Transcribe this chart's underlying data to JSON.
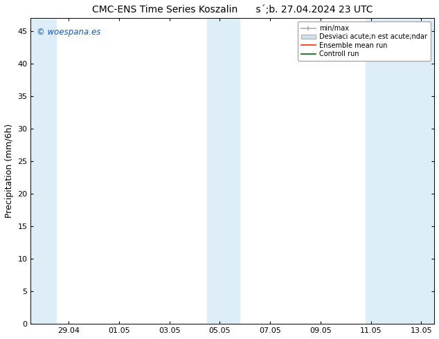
{
  "title": "CMC-ENS Time Series Koszalin      s´;b. 27.04.2024 23 UTC",
  "ylabel": "Precipitation (mm/6h)",
  "ylim": [
    0,
    47
  ],
  "yticks": [
    0,
    5,
    10,
    15,
    20,
    25,
    30,
    35,
    40,
    45
  ],
  "background_color": "#ffffff",
  "plot_bg_color": "#ffffff",
  "shaded_band_color": "#ddeef8",
  "watermark_text": "© woespana.es",
  "watermark_color": "#1155cc",
  "legend_entries": [
    "min/max",
    "Desviaci acute;n est acute;ndar",
    "Ensemble mean run",
    "Controll run"
  ],
  "legend_minmax_color": "#aaaaaa",
  "legend_desviac_color": "#cce0f0",
  "legend_ensemble_color": "#ff2200",
  "legend_control_color": "#006600",
  "x_tick_labels": [
    "29.04",
    "01.05",
    "03.05",
    "05.05",
    "07.05",
    "09.05",
    "11.05",
    "13.05"
  ],
  "x_tick_positions": [
    2,
    4,
    6,
    8,
    10,
    12,
    14,
    16
  ],
  "x_lim": [
    0.5,
    16.5
  ],
  "band1_x1": 0.5,
  "band1_x2": 1.5,
  "band2_x1": 7.5,
  "band2_x2": 8.8,
  "band3_x1": 13.8,
  "band3_x2": 16.5,
  "title_fontsize": 10,
  "ylabel_fontsize": 9,
  "tick_fontsize": 8,
  "legend_fontsize": 7,
  "watermark_fontsize": 8.5
}
